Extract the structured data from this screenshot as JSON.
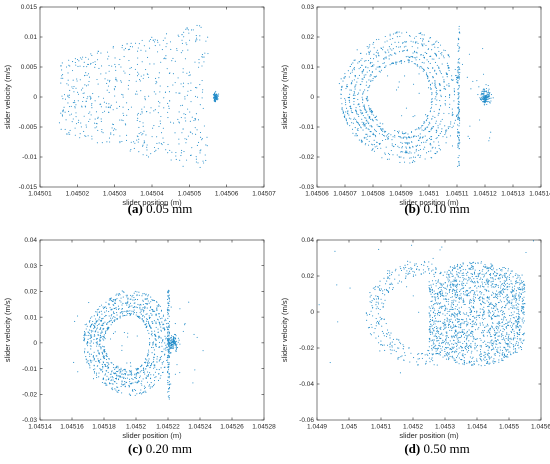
{
  "figure": {
    "colors": {
      "marker": "#1f8ac8",
      "axis": "#262626",
      "background": "#ffffff"
    }
  },
  "chart_data": [
    {
      "type": "scatter",
      "panel_label": "(a)",
      "caption": "0.05 mm",
      "xlabel": "slider position (m)",
      "ylabel": "slider velocity (m/s)",
      "xlim": [
        1.04501,
        1.04507
      ],
      "ylim": [
        -0.015,
        0.015
      ],
      "xticks": [
        1.04501,
        1.04502,
        1.04503,
        1.04504,
        1.04505,
        1.04506,
        1.04507
      ],
      "xtick_labels": [
        "1.04501",
        "1.04502",
        "1.04503",
        "1.04504",
        "1.04505",
        "1.04506",
        "1.04507"
      ],
      "yticks": [
        -0.015,
        -0.01,
        -0.005,
        0,
        0.005,
        0.01,
        0.015
      ],
      "ytick_labels": [
        "-0.015",
        "-0.01",
        "-0.005",
        "0",
        "0.005",
        "0.01",
        "0.015"
      ],
      "pattern": {
        "kind": "scatter-cloud",
        "xmin": 1.045015,
        "xmax": 1.045055,
        "ymin": -0.013,
        "ymax": 0.013,
        "cluster": [
          1.045057,
          0.0
        ]
      },
      "approx_points": [
        [
          1.04502,
          0.004
        ],
        [
          1.04503,
          -0.006
        ],
        [
          1.04504,
          0.008
        ],
        [
          1.04505,
          -0.01
        ],
        [
          1.045057,
          0.0
        ],
        [
          1.045055,
          0.011
        ]
      ]
    },
    {
      "type": "scatter",
      "panel_label": "(b)",
      "caption": "0.10 mm",
      "xlabel": "slider position (m)",
      "ylabel": "slider velocity (m/s)",
      "xlim": [
        1.04506,
        1.04514
      ],
      "ylim": [
        -0.03,
        0.03
      ],
      "xticks": [
        1.04506,
        1.04507,
        1.04508,
        1.04509,
        1.0451,
        1.04511,
        1.04512,
        1.04513,
        1.04514
      ],
      "xtick_labels": [
        "1.04506",
        "1.04507",
        "1.04508",
        "1.04509",
        "1.0451",
        "1.04511",
        "1.04512",
        "1.04513",
        "1.04514"
      ],
      "yticks": [
        -0.03,
        -0.02,
        -0.01,
        0,
        0.01,
        0.02,
        0.03
      ],
      "ytick_labels": [
        "-0.03",
        "-0.02",
        "-0.01",
        "0",
        "0.01",
        "0.02",
        "0.03"
      ],
      "pattern": {
        "kind": "loops",
        "left": 1.045068,
        "right": 1.045111,
        "amp": 0.025,
        "cluster": [
          1.04512,
          0.0
        ]
      },
      "approx_points": [
        [
          1.045068,
          0.0
        ],
        [
          1.04509,
          0.022
        ],
        [
          1.04511,
          0.026
        ],
        [
          1.04511,
          -0.025
        ],
        [
          1.04512,
          0.0
        ]
      ]
    },
    {
      "type": "scatter",
      "panel_label": "(c)",
      "caption": "0.20 mm",
      "xlabel": "slider position (m)",
      "ylabel": "slider velocity (m/s)",
      "xlim": [
        1.04514,
        1.04528
      ],
      "ylim": [
        -0.03,
        0.04
      ],
      "xticks": [
        1.04514,
        1.04516,
        1.04518,
        1.0452,
        1.04522,
        1.04524,
        1.04526,
        1.04528
      ],
      "xtick_labels": [
        "1.04514",
        "1.04516",
        "1.04518",
        "1.0452",
        "1.04522",
        "1.04524",
        "1.04526",
        "1.04528"
      ],
      "yticks": [
        -0.03,
        -0.02,
        -0.01,
        0,
        0.01,
        0.02,
        0.03,
        0.04
      ],
      "ytick_labels": [
        "-0.03",
        "-0.02",
        "-0.01",
        "0",
        "0.01",
        "0.02",
        "0.03",
        "0.04"
      ],
      "pattern": {
        "kind": "loops",
        "left": 1.045167,
        "right": 1.045221,
        "amp": 0.023,
        "cluster": [
          1.045223,
          0.0
        ]
      },
      "approx_points": [
        [
          1.045167,
          0.0
        ],
        [
          1.04519,
          0.02
        ],
        [
          1.04522,
          0.023
        ],
        [
          1.04522,
          -0.022
        ],
        [
          1.045223,
          0.0
        ]
      ]
    },
    {
      "type": "scatter",
      "panel_label": "(d)",
      "caption": "0.50 mm",
      "xlabel": "slider position (m)",
      "ylabel": "slider velocity (m/s)",
      "xlim": [
        1.0449,
        1.0456
      ],
      "ylim": [
        -0.06,
        0.04
      ],
      "xticks": [
        1.0449,
        1.045,
        1.0451,
        1.0452,
        1.0453,
        1.0454,
        1.0455,
        1.0456
      ],
      "xtick_labels": [
        "1.0449",
        "1.045",
        "1.0451",
        "1.0452",
        "1.0453",
        "1.0454",
        "1.0455",
        "1.0456"
      ],
      "yticks": [
        -0.06,
        -0.04,
        -0.02,
        0,
        0.02,
        0.04
      ],
      "ytick_labels": [
        "-0.06",
        "-0.04",
        "-0.02",
        "0",
        "0.02",
        "0.04"
      ],
      "pattern": {
        "kind": "dense-blob",
        "xmin": 1.04525,
        "xmax": 1.04555,
        "ymin": -0.03,
        "ymax": 0.028,
        "arc_left": 1.04505
      },
      "approx_points": [
        [
          1.04527,
          0.0
        ],
        [
          1.0454,
          0.02
        ],
        [
          1.04553,
          -0.01
        ],
        [
          1.0451,
          0.02
        ],
        [
          1.0454,
          -0.025
        ]
      ]
    }
  ]
}
